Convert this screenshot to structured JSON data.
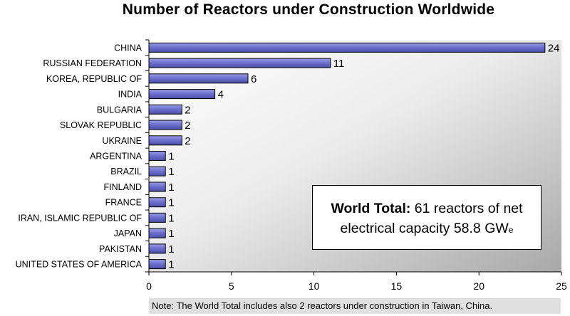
{
  "chart_data": {
    "type": "bar",
    "orientation": "horizontal",
    "title": "Number of Reactors under Construction Worldwide",
    "categories": [
      "CHINA",
      "RUSSIAN FEDERATION",
      "KOREA, REPUBLIC OF",
      "INDIA",
      "BULGARIA",
      "SLOVAK REPUBLIC",
      "UKRAINE",
      "ARGENTINA",
      "BRAZIL",
      "FINLAND",
      "FRANCE",
      "IRAN, ISLAMIC REPUBLIC OF",
      "JAPAN",
      "PAKISTAN",
      "UNITED STATES OF AMERICA"
    ],
    "values": [
      24,
      11,
      6,
      4,
      2,
      2,
      2,
      1,
      1,
      1,
      1,
      1,
      1,
      1,
      1
    ],
    "xlim": [
      0,
      25
    ],
    "x_ticks": [
      0,
      5,
      10,
      15,
      20,
      25
    ],
    "xlabel": "",
    "ylabel": "",
    "grid": false,
    "legend": "none",
    "bar_color": "#7b7fd6",
    "bar_edge_color": "#000000",
    "plot_background": "gradient white to gray"
  },
  "annotation": {
    "bold": "World Total:",
    "line1_rest": " 61 reactors of net",
    "line2": "electrical capacity 58.8 GW",
    "subscript": "e"
  },
  "footnote": "Note: The World Total includes also 2 reactors under construction in Taiwan, China."
}
